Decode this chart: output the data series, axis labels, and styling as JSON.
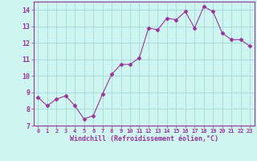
{
  "x": [
    0,
    1,
    2,
    3,
    4,
    5,
    6,
    7,
    8,
    9,
    10,
    11,
    12,
    13,
    14,
    15,
    16,
    17,
    18,
    19,
    20,
    21,
    22,
    23
  ],
  "y": [
    8.7,
    8.2,
    8.6,
    8.8,
    8.2,
    7.4,
    7.6,
    8.9,
    10.1,
    10.7,
    10.7,
    11.1,
    12.9,
    12.8,
    13.5,
    13.4,
    13.9,
    12.9,
    14.2,
    13.9,
    12.6,
    12.2,
    12.2,
    11.8
  ],
  "line_color": "#993399",
  "marker": "D",
  "marker_size": 2.5,
  "bg_color": "#cef5f0",
  "grid_color": "#aadddd",
  "xlabel": "Windchill (Refroidissement éolien,°C)",
  "xlabel_color": "#993399",
  "tick_color": "#993399",
  "ylim": [
    7,
    14.5
  ],
  "xlim": [
    -0.5,
    23.5
  ],
  "yticks": [
    7,
    8,
    9,
    10,
    11,
    12,
    13,
    14
  ],
  "xticks": [
    0,
    1,
    2,
    3,
    4,
    5,
    6,
    7,
    8,
    9,
    10,
    11,
    12,
    13,
    14,
    15,
    16,
    17,
    18,
    19,
    20,
    21,
    22,
    23
  ]
}
